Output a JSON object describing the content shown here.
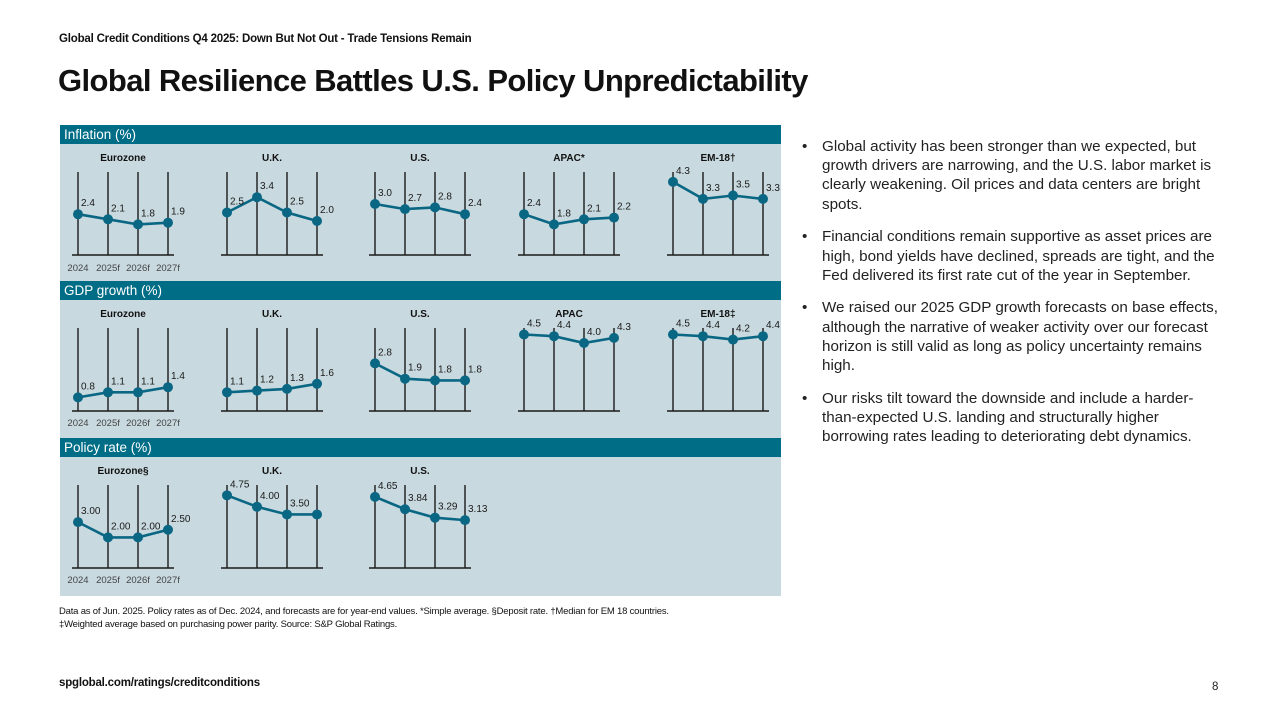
{
  "header": {
    "kicker": "Global Credit Conditions Q4 2025: Down But Not Out - Trade Tensions Remain",
    "title": "Global Resilience Battles U.S. Policy Unpredictability"
  },
  "colors": {
    "header_bar": "#006D86",
    "panel_bg": "#C8D9DF",
    "series": "#0A6784",
    "axis": "#1a1a1a"
  },
  "chart_data": [
    {
      "type": "line",
      "section": "Inflation (%)",
      "x": [
        "2024",
        "2025f",
        "2026f",
        "2027f"
      ],
      "show_xlabels_on": "Eurozone",
      "series": [
        {
          "name": "Eurozone",
          "values": [
            2.4,
            2.1,
            1.8,
            1.9
          ],
          "labels": [
            "2.4",
            "2.1",
            "1.8",
            "1.9"
          ]
        },
        {
          "name": "U.K.",
          "values": [
            2.5,
            3.4,
            2.5,
            2.0
          ],
          "labels": [
            "2.5",
            "3.4",
            "2.5",
            "2.0"
          ]
        },
        {
          "name": "U.S.",
          "values": [
            3.0,
            2.7,
            2.8,
            2.4
          ],
          "labels": [
            "3.0",
            "2.7",
            "2.8",
            "2.4"
          ]
        },
        {
          "name": "APAC*",
          "values": [
            2.4,
            1.8,
            2.1,
            2.2
          ],
          "labels": [
            "2.4",
            "1.8",
            "2.1",
            "2.2"
          ]
        },
        {
          "name": "EM-18†",
          "values": [
            4.3,
            3.3,
            3.5,
            3.3
          ],
          "labels": [
            "4.3",
            "3.3",
            "3.5",
            "3.3"
          ]
        }
      ]
    },
    {
      "type": "line",
      "section": "GDP growth (%)",
      "x": [
        "2024",
        "2025f",
        "2026f",
        "2027f"
      ],
      "show_xlabels_on": "Eurozone",
      "series": [
        {
          "name": "Eurozone",
          "values": [
            0.8,
            1.1,
            1.1,
            1.4
          ],
          "labels": [
            "0.8",
            "1.1",
            "1.1",
            "1.4"
          ]
        },
        {
          "name": "U.K.",
          "values": [
            1.1,
            1.2,
            1.3,
            1.6
          ],
          "labels": [
            "1.1",
            "1.2",
            "1.3",
            "1.6"
          ]
        },
        {
          "name": "U.S.",
          "values": [
            2.8,
            1.9,
            1.8,
            1.8
          ],
          "labels": [
            "2.8",
            "1.9",
            "1.8",
            "1.8"
          ]
        },
        {
          "name": "APAC",
          "values": [
            4.5,
            4.4,
            4.0,
            4.3
          ],
          "labels": [
            "4.5",
            "4.4",
            "4.0",
            "4.3"
          ]
        },
        {
          "name": "EM-18‡",
          "values": [
            4.5,
            4.4,
            4.2,
            4.4
          ],
          "labels": [
            "4.5",
            "4.4",
            "4.2",
            "4.4"
          ]
        }
      ]
    },
    {
      "type": "line",
      "section": "Policy rate (%)",
      "x": [
        "2024",
        "2025f",
        "2026f",
        "2027f"
      ],
      "show_xlabels_on": "Eurozone§",
      "series": [
        {
          "name": "Eurozone§",
          "values": [
            3.0,
            2.0,
            2.0,
            2.5
          ],
          "labels": [
            "3.00",
            "2.00",
            "2.00",
            "2.50"
          ]
        },
        {
          "name": "U.K.",
          "values": [
            4.75,
            4.0,
            3.5,
            3.5
          ],
          "labels": [
            "4.75",
            "4.00",
            "3.50",
            ""
          ]
        },
        {
          "name": "U.S.",
          "values": [
            4.65,
            3.84,
            3.29,
            3.13
          ],
          "labels": [
            "4.65",
            "3.84",
            "3.29",
            "3.13"
          ]
        }
      ]
    }
  ],
  "bullets": [
    "Global activity has been stronger than we expected, but growth drivers are narrowing, and the U.S. labor market is clearly weakening. Oil prices and data centers are bright spots.",
    "Financial conditions remain supportive as asset prices are high, bond yields have declined, spreads are tight, and the Fed delivered its first rate cut of the year in September.",
    "We raised our 2025 GDP growth forecasts on base effects, although the narrative of weaker activity over our forecast horizon is still valid as long as policy uncertainty remains high.",
    "Our risks tilt toward the downside and include a harder-than-expected U.S. landing and structurally higher borrowing rates leading to deteriorating debt dynamics."
  ],
  "bullet_glyph": "•",
  "footnote": {
    "line1": "Data as of Jun. 2025. Policy rates as of Dec. 2024, and forecasts are for year-end values. *Simple average. §Deposit rate. †Median for EM 18 countries.",
    "line2": "‡Weighted average based on purchasing power parity. Source: S&P Global Ratings."
  },
  "footer": {
    "url": "spglobal.com/ratings/creditconditions",
    "page_number": "8"
  }
}
